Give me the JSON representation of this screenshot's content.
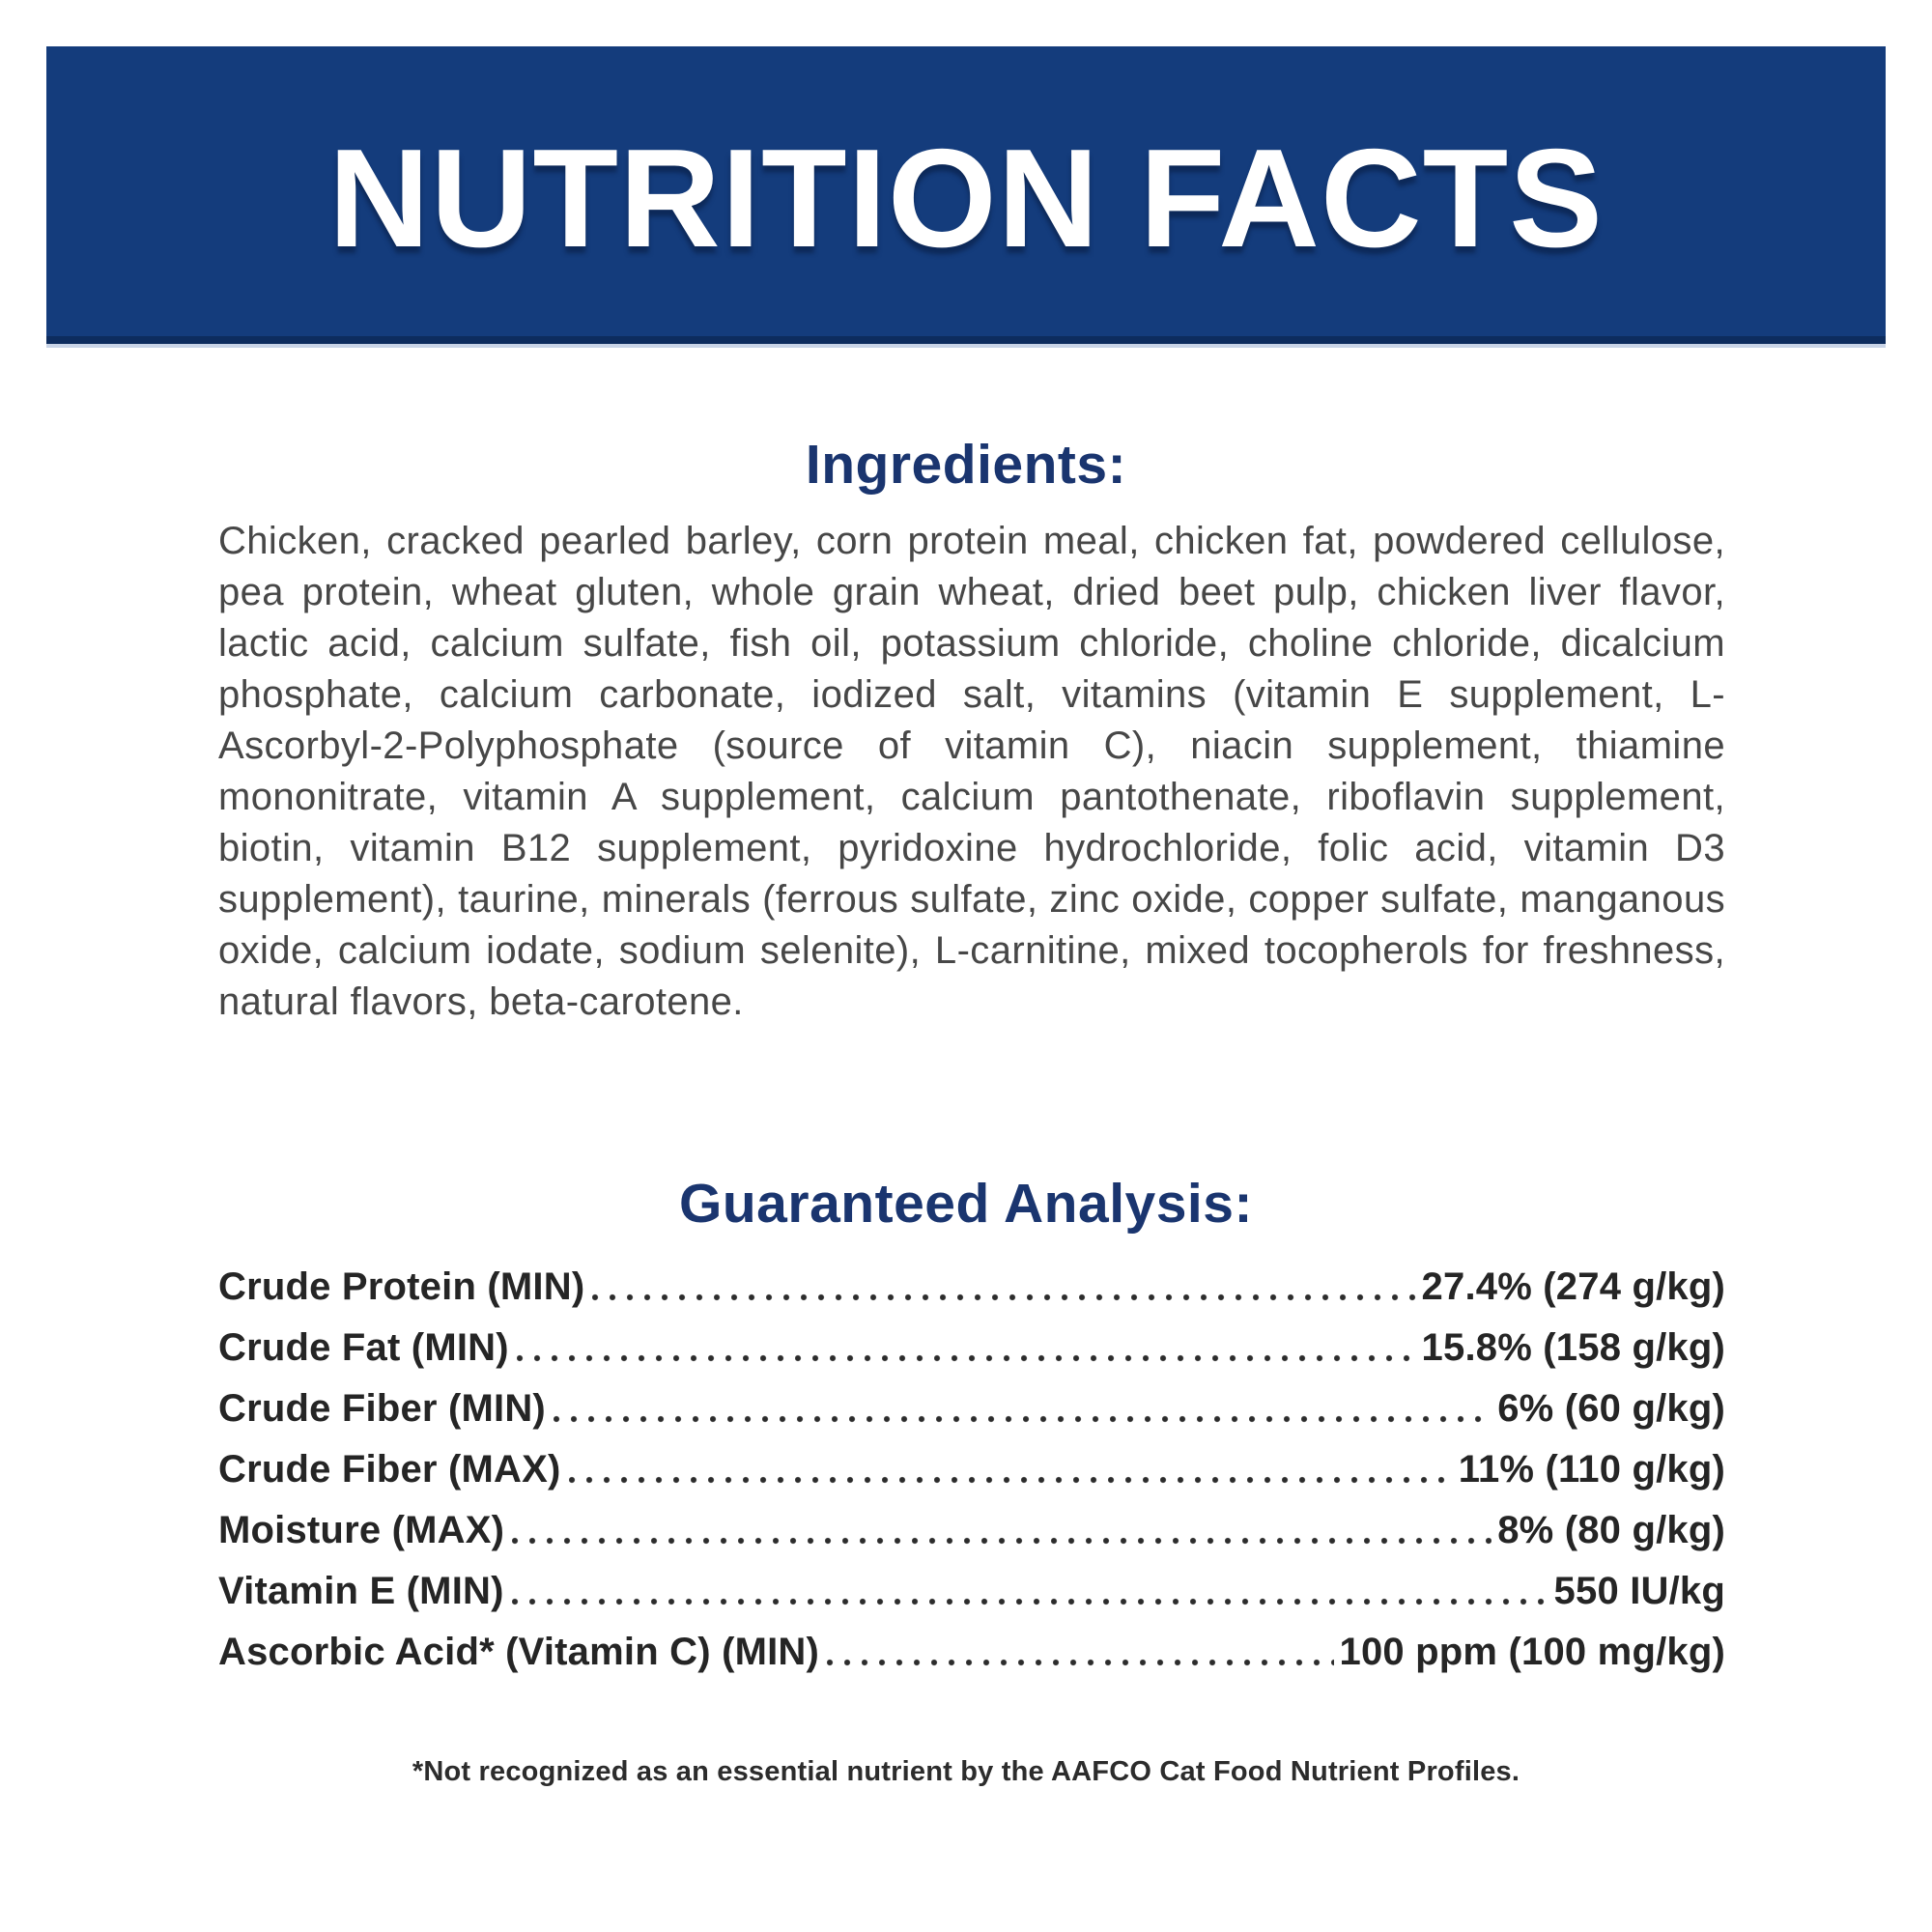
{
  "banner": {
    "title": "NUTRITION FACTS",
    "bg_color": "#143c7c",
    "text_color": "#ffffff"
  },
  "ingredients": {
    "heading": "Ingredients:",
    "body": "Chicken, cracked pearled barley, corn protein meal, chicken fat, powdered cellulose, pea protein, wheat gluten, whole grain wheat, dried beet pulp, chicken liver flavor, lactic acid, calcium sulfate, fish oil, potassium chloride, choline chloride, dicalcium phosphate, calcium carbonate, iodized salt, vitamins (vitamin E supplement, L-Ascorbyl-2-Polyphosphate (source of vitamin C), niacin supplement, thiamine mononitrate, vitamin A supplement, calcium pantothenate, riboflavin supplement, biotin, vitamin B12 supplement, pyridoxine hydrochloride, folic acid, vitamin D3 supplement), taurine, minerals (ferrous sulfate, zinc oxide, copper sulfate, manganous oxide, calcium iodate, sodium selenite), L-carnitine, mixed tocopherols for freshness, natural flavors, beta-carotene."
  },
  "guaranteed_analysis": {
    "heading": "Guaranteed Analysis:",
    "rows": [
      {
        "label": "Crude Protein (MIN)",
        "value": "27.4% (274 g/kg)"
      },
      {
        "label": "Crude Fat (MIN)",
        "value": "15.8% (158 g/kg)"
      },
      {
        "label": "Crude Fiber (MIN)",
        "value": "6% (60 g/kg)"
      },
      {
        "label": "Crude Fiber (MAX)",
        "value": "11% (110 g/kg)"
      },
      {
        "label": "Moisture (MAX)",
        "value": "8% (80 g/kg)"
      },
      {
        "label": "Vitamin E (MIN)",
        "value": "550 IU/kg"
      },
      {
        "label": "Ascorbic Acid* (Vitamin C) (MIN)",
        "value": "100 ppm (100 mg/kg)"
      }
    ]
  },
  "footnote": "*Not recognized as an essential nutrient by the AAFCO Cat Food Nutrient Profiles.",
  "colors": {
    "banner_navy": "#143c7c",
    "banner_border": "#0d2c5e",
    "heading_navy": "#1a356f",
    "body_gray": "#474747",
    "table_black": "#252525",
    "background": "#ffffff"
  }
}
